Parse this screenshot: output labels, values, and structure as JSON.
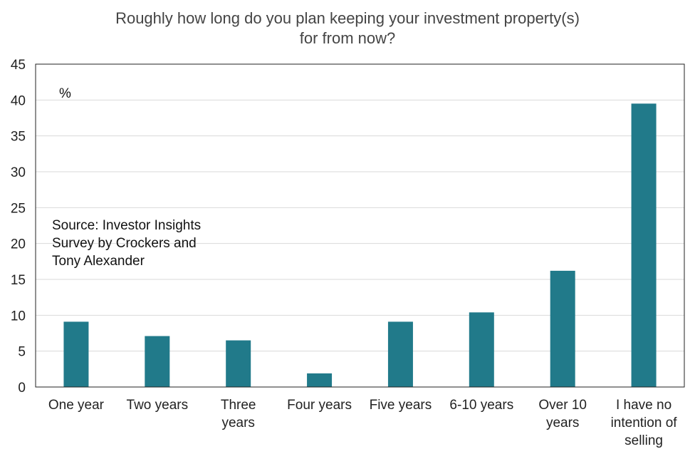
{
  "chart_data": {
    "type": "bar",
    "title_lines": [
      "Roughly how long do you plan keeping your investment property(s)",
      "for from now?"
    ],
    "unit_label": "%",
    "source_lines": [
      "Source: Investor Insights",
      "Survey by Crockers and",
      "Tony Alexander"
    ],
    "categories": [
      [
        "One year"
      ],
      [
        "Two years"
      ],
      [
        "Three",
        "years"
      ],
      [
        "Four years"
      ],
      [
        "Five years"
      ],
      [
        "6-10 years"
      ],
      [
        "Over 10",
        "years"
      ],
      [
        "I have no",
        "intention of",
        "selling"
      ]
    ],
    "values": [
      9.1,
      7.1,
      6.5,
      1.9,
      9.1,
      10.4,
      16.2,
      39.5
    ],
    "ylim": [
      0,
      45
    ],
    "yticks": [
      "0",
      "5",
      "10",
      "15",
      "20",
      "25",
      "30",
      "35",
      "40",
      "45"
    ],
    "grid": true,
    "bar_color": "#217a8a",
    "grid_color": "#d9d9d9",
    "axis_color": "#222222"
  }
}
